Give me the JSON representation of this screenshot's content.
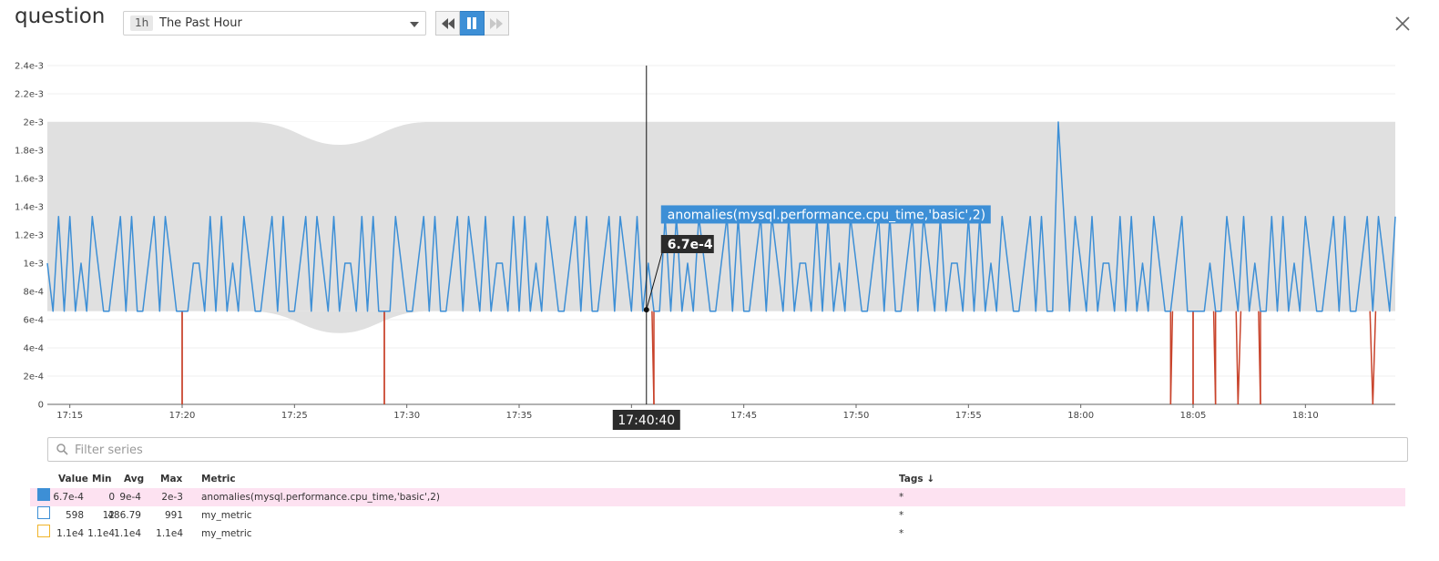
{
  "header": {
    "title": "question",
    "timeframe": {
      "abbr": "1h",
      "label": "The Past Hour"
    },
    "controls": [
      "rewind",
      "pause",
      "forward"
    ]
  },
  "chart_data": {
    "type": "line",
    "y_ticks": [
      "0",
      "2e-4",
      "4e-4",
      "6e-4",
      "8e-4",
      "1e-3",
      "1.2e-3",
      "1.4e-3",
      "1.6e-3",
      "1.8e-3",
      "2e-3",
      "2.2e-3",
      "2.4e-3"
    ],
    "ylim": [
      0,
      0.0024
    ],
    "x_ticks": [
      "17:15",
      "17:20",
      "17:25",
      "17:30",
      "17:35",
      "17:40",
      "17:45",
      "17:50",
      "17:55",
      "18:00",
      "18:05",
      "18:10"
    ],
    "x_start": "17:14",
    "x_end": "18:14",
    "band": {
      "lower": 0.00066,
      "upper": 0.002
    },
    "series": [
      {
        "name": "anomalies(mysql.performance.cpu_time,'basic',2)",
        "color": "#3d8fd6",
        "anomaly_color": "#c8432b",
        "pattern": [
          0.001,
          0.00066,
          0.00133,
          0.00066,
          0.00133,
          0.00066,
          0.001,
          0.00066,
          0.00133,
          0.001,
          0.00066,
          0.00066,
          0.001,
          0.00133,
          0.00066,
          0.00133,
          0.00066,
          0.00066,
          0.001,
          0.00133,
          0.00066,
          0.00133,
          0.001,
          0.00066,
          0.00133,
          0.00066,
          0.001
        ]
      }
    ],
    "anomaly_drops": [
      "17:20",
      "17:29",
      "17:41",
      "18:04",
      "18:05",
      "18:06",
      "18:07",
      "18:08",
      "18:13"
    ],
    "spike": {
      "x": "17:59",
      "y": 0.002
    },
    "hover": {
      "time": "17:40:40",
      "value": "6.7e-4",
      "y": 0.00067,
      "label": "anomalies(mysql.performance.cpu_time,'basic',2)"
    }
  },
  "filter": {
    "placeholder": "Filter series",
    "value": ""
  },
  "legend": {
    "headers": {
      "value": "Value",
      "min": "Min",
      "avg": "Avg",
      "max": "Max",
      "metric": "Metric",
      "tags": "Tags ↓"
    },
    "rows": [
      {
        "value": "6.7e-4",
        "min": "0",
        "avg": "9e-4",
        "max": "2e-3",
        "metric": "anomalies(mysql.performance.cpu_time,'basic',2)",
        "tags": "*",
        "color": "#3d8fd6",
        "filled": true
      },
      {
        "value": "598",
        "min": "12",
        "avg": "486.79",
        "max": "991",
        "metric": "my_metric",
        "tags": "*",
        "color": "#3d8fd6",
        "filled": false
      },
      {
        "value": "1.1e4",
        "min": "1.1e4",
        "avg": "1.1e4",
        "max": "1.1e4",
        "metric": "my_metric",
        "tags": "*",
        "color": "#f0b429",
        "filled": false
      }
    ]
  }
}
